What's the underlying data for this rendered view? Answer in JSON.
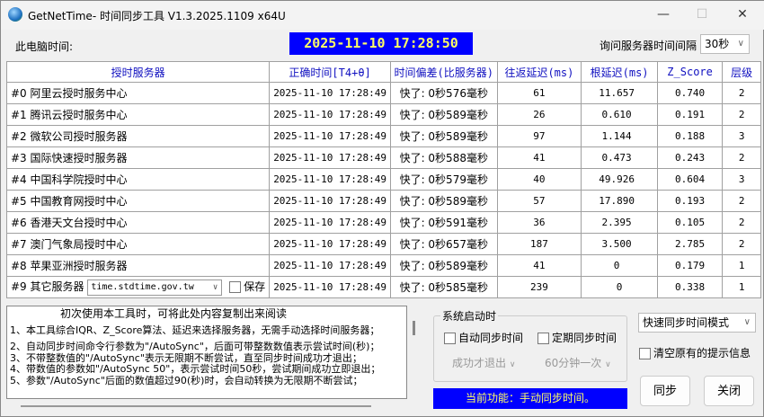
{
  "window": {
    "title": "GetNetTime- 时间同步工具 V1.3.2025.1109 x64U",
    "min": "—",
    "max": "☐",
    "close": "✕"
  },
  "header": {
    "pc_time_label": "此电脑时间:",
    "pc_time": "2025-11-10   17:28:50",
    "interval_label": "询问服务器时间间隔",
    "interval_value": "30秒"
  },
  "table": {
    "columns": [
      "授时服务器",
      "正确时间[T4+θ]",
      "时间偏差(比服务器)",
      "往返延迟(ms)",
      "根延迟(ms)",
      "Z_Score",
      "层级"
    ],
    "rows": [
      [
        "#0  阿里云授时服务中心",
        "2025-11-10 17:28:49",
        "快了: 0秒576毫秒",
        "61",
        "11.657",
        "0.740",
        "2"
      ],
      [
        "#1  腾讯云授时服务中心",
        "2025-11-10 17:28:49",
        "快了: 0秒589毫秒",
        "26",
        "0.610",
        "0.191",
        "2"
      ],
      [
        "#2  微软公司授时服务器",
        "2025-11-10 17:28:49",
        "快了: 0秒589毫秒",
        "97",
        "1.144",
        "0.188",
        "3"
      ],
      [
        "#3  国际快速授时服务器",
        "2025-11-10 17:28:49",
        "快了: 0秒588毫秒",
        "41",
        "0.473",
        "0.243",
        "2"
      ],
      [
        "#4  中国科学院授时中心",
        "2025-11-10 17:28:49",
        "快了: 0秒579毫秒",
        "40",
        "49.926",
        "0.604",
        "3"
      ],
      [
        "#5  中国教育网授时中心",
        "2025-11-10 17:28:49",
        "快了: 0秒589毫秒",
        "57",
        "17.890",
        "0.193",
        "2"
      ],
      [
        "#6  香港天文台授时中心",
        "2025-11-10 17:28:49",
        "快了: 0秒591毫秒",
        "36",
        "2.395",
        "0.105",
        "2"
      ],
      [
        "#7  澳门气象局授时中心",
        "2025-11-10 17:28:49",
        "快了: 0秒657毫秒",
        "187",
        "3.500",
        "2.785",
        "2"
      ],
      [
        "#8  苹果亚洲授时服务器",
        "2025-11-10 17:28:49",
        "快了: 0秒589毫秒",
        "41",
        "0",
        "0.179",
        "1"
      ]
    ],
    "other": {
      "label": "#9  其它服务器",
      "server": "time.stdtime.gov.tw",
      "save_label": "保存",
      "time": "2025-11-10 17:28:49",
      "offset": "快了: 0秒585毫秒",
      "rtt": "239",
      "root": "0",
      "z": "0.338",
      "level": "1"
    }
  },
  "notes": {
    "lines": [
      "初次使用本工具时，可将此处内容复制出来阅读",
      "1、本工具综合IQR、Z_Score算法、延迟来选择服务器，无需手动选择时间服务器；",
      "2、自动同步时间命令行参数为\"/AutoSync\"，后面可带整数数值表示尝试时间(秒)；",
      "3、不带整数值的\"/AutoSync\"表示无限期不断尝试，直至同步时间成功才退出；",
      "4、带数值的参数如\"/AutoSync 50\"，表示尝试时间50秒，尝试期间成功立即退出；",
      "5、参数\"/AutoSync\"后面的数值超过90(秒)时，会自动转换为无限期不断尝试；"
    ]
  },
  "startup": {
    "group_label": "系统启动时",
    "auto_sync": "自动同步时间",
    "periodic_sync": "定期同步时间",
    "exit_mode": "成功才退出",
    "period": "60分钟一次"
  },
  "status": "当前功能：手动同步时间。",
  "mode": {
    "value": "快速同步时间模式",
    "clear_label": "清空原有的提示信息"
  },
  "buttons": {
    "sync": "同步",
    "close": "关闭"
  }
}
